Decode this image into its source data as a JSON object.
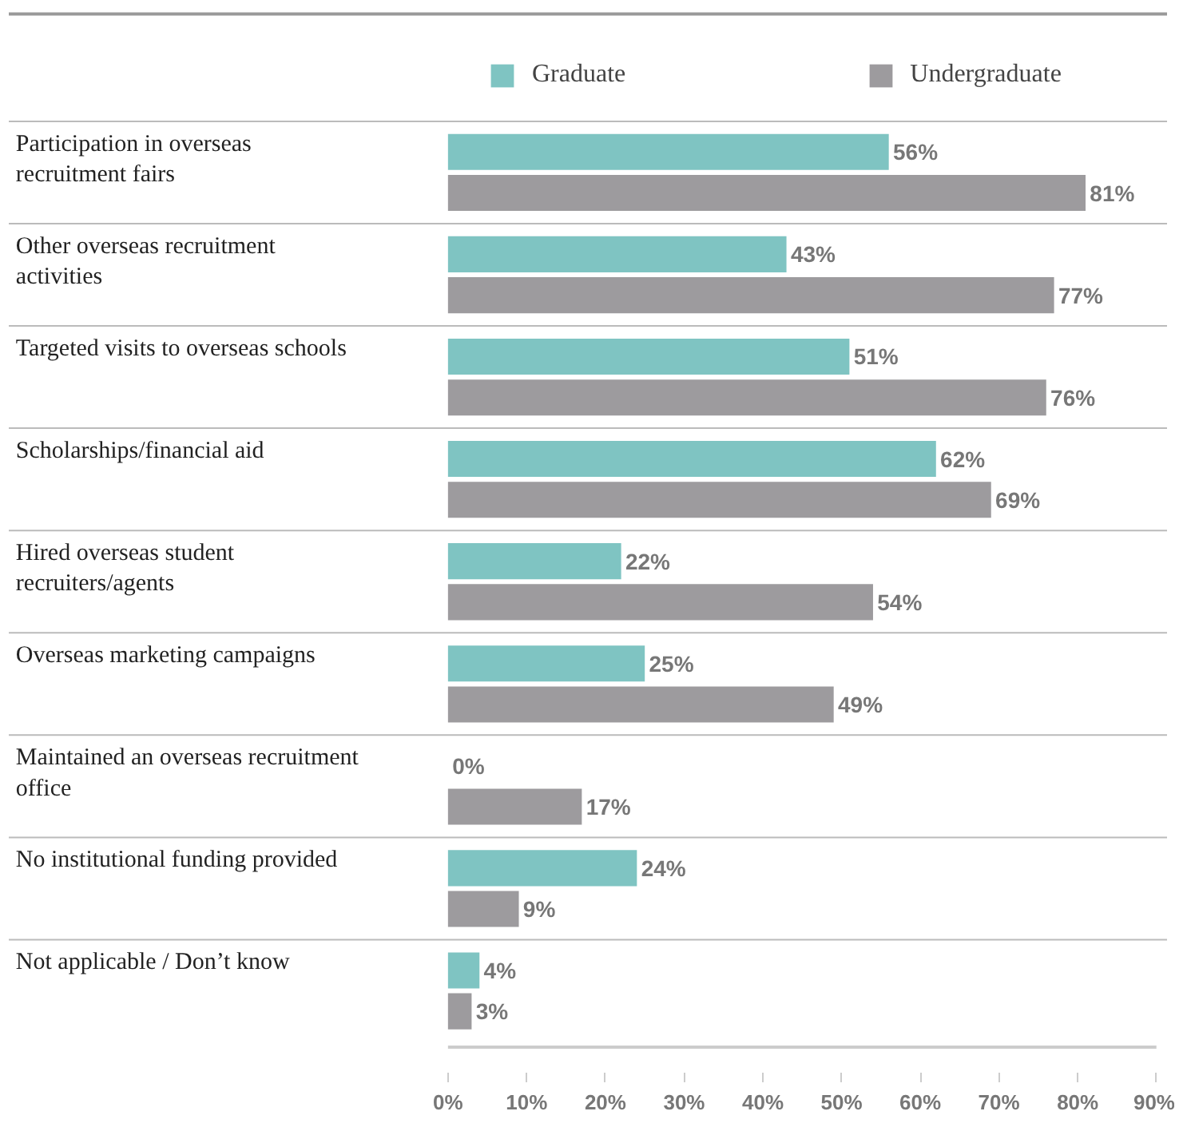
{
  "chart_data": {
    "type": "bar",
    "orientation": "horizontal",
    "categories": [
      "Participation in overseas recruitment fairs",
      "Other overseas recruitment activities",
      "Targeted visits to overseas schools",
      "Scholarships/financial aid",
      "Hired overseas student recruiters/agents",
      "Overseas marketing campaigns",
      "Maintained an overseas recruitment office",
      "No institutional funding provided",
      "Not applicable / Don’t know"
    ],
    "series": [
      {
        "name": "Graduate",
        "color": "#7fc4c2",
        "values": [
          56,
          43,
          51,
          62,
          22,
          25,
          0,
          24,
          4
        ]
      },
      {
        "name": "Undergraduate",
        "color": "#9d9b9e",
        "values": [
          81,
          77,
          76,
          69,
          54,
          49,
          17,
          9,
          3
        ]
      }
    ],
    "xlim": [
      0,
      90
    ],
    "xticks": [
      {
        "value": 0,
        "label": "0%"
      },
      {
        "value": 10,
        "label": "10%"
      },
      {
        "value": 20,
        "label": "20%"
      },
      {
        "value": 30,
        "label": "30%"
      },
      {
        "value": 40,
        "label": "40%"
      },
      {
        "value": 50,
        "label": "50%"
      },
      {
        "value": 60,
        "label": "60%"
      },
      {
        "value": 70,
        "label": "70%"
      },
      {
        "value": 80,
        "label": "80%"
      },
      {
        "value": 90,
        "label": "90%"
      }
    ],
    "value_labels": [
      [
        "56%",
        "43%",
        "51%",
        "62%",
        "22%",
        "25%",
        "0%",
        "24%",
        "4%"
      ],
      [
        "81%",
        "77%",
        "76%",
        "69%",
        "54%",
        "49%",
        "17%",
        "9%",
        "3%"
      ]
    ],
    "legend": "top",
    "grid": false
  }
}
